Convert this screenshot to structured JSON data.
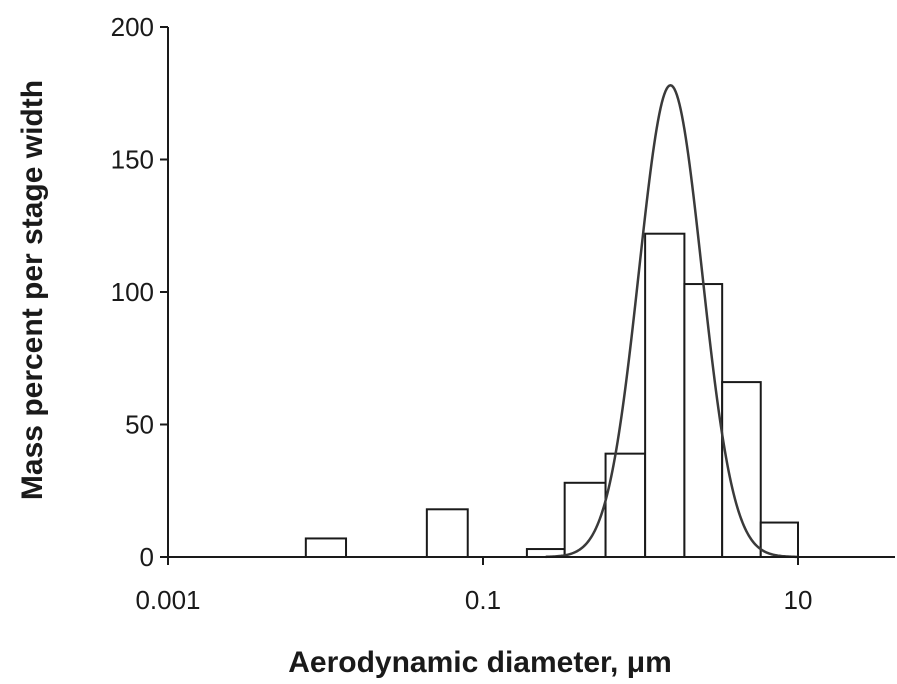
{
  "chart_data": {
    "type": "bar",
    "x_scale": "log",
    "xlabel": "Aerodynamic diameter, μm",
    "ylabel": "Mass percent per stage width",
    "xlim": [
      0.001,
      100
    ],
    "ylim": [
      0,
      200
    ],
    "x_ticks": [
      0.001,
      0.1,
      10
    ],
    "x_tick_labels": [
      "0.001",
      "0.1",
      "10"
    ],
    "y_ticks": [
      0,
      50,
      100,
      150,
      200
    ],
    "y_tick_labels": [
      "0",
      "50",
      "100",
      "150",
      "200"
    ],
    "grid": false,
    "bars": [
      {
        "x_from": 0.0075,
        "x_to": 0.0135,
        "value": 7
      },
      {
        "x_from": 0.044,
        "x_to": 0.08,
        "value": 18
      },
      {
        "x_from": 0.19,
        "x_to": 0.33,
        "value": 3
      },
      {
        "x_from": 0.33,
        "x_to": 0.6,
        "value": 28
      },
      {
        "x_from": 0.6,
        "x_to": 1.07,
        "value": 39
      },
      {
        "x_from": 1.07,
        "x_to": 1.9,
        "value": 122
      },
      {
        "x_from": 1.9,
        "x_to": 3.3,
        "value": 103
      },
      {
        "x_from": 3.3,
        "x_to": 5.8,
        "value": 66
      },
      {
        "x_from": 5.8,
        "x_to": 10.0,
        "value": 13
      }
    ],
    "fitted_curve": {
      "type": "lognormal",
      "peak_diameter": 1.55,
      "peak_value": 178,
      "log10_sigma": 0.2
    }
  }
}
